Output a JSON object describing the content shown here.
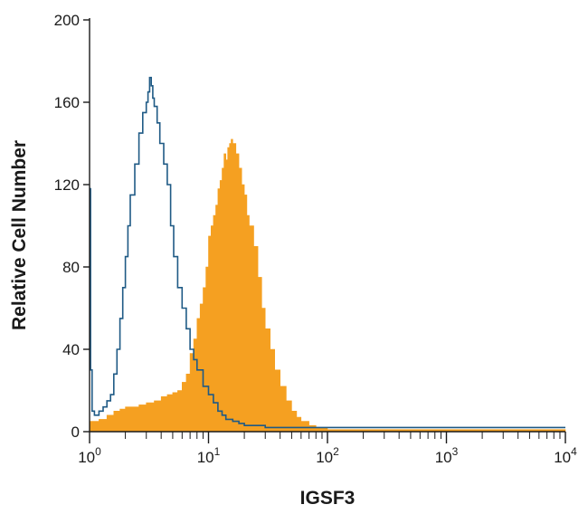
{
  "chart_data": {
    "type": "area",
    "xlabel": "IGSF3",
    "ylabel": "Relative Cell Number",
    "x_scale": "log",
    "xlim": [
      1,
      10000
    ],
    "ylim": [
      0,
      200
    ],
    "y_ticks": [
      0,
      40,
      80,
      120,
      160,
      200
    ],
    "x_major_ticks": [
      {
        "value": 1,
        "base": "10",
        "exp": "0"
      },
      {
        "value": 10,
        "base": "10",
        "exp": "1"
      },
      {
        "value": 100,
        "base": "10",
        "exp": "2"
      },
      {
        "value": 1000,
        "base": "10",
        "exp": "3"
      },
      {
        "value": 10000,
        "base": "10",
        "exp": "4"
      }
    ],
    "grid": false,
    "legend": "none",
    "series": [
      {
        "style": "filled",
        "color": "#f5a021",
        "x": [
          1.0,
          1.2,
          1.4,
          1.6,
          1.8,
          2.0,
          2.3,
          2.6,
          3.0,
          3.5,
          4.0,
          4.5,
          5.0,
          5.5,
          6.0,
          6.5,
          7.0,
          7.5,
          8.0,
          8.5,
          9.0,
          9.5,
          10.0,
          10.5,
          11.0,
          11.5,
          12.0,
          12.5,
          13.0,
          13.5,
          14.0,
          14.5,
          15.0,
          15.5,
          16.0,
          17.0,
          18.0,
          19.0,
          20.0,
          21.0,
          22.0,
          24.0,
          26.0,
          28.0,
          30.0,
          33.0,
          36.0,
          40.0,
          45.0,
          50.0,
          55.0,
          60.0,
          70.0,
          80.0,
          90.0,
          100.0,
          150.0,
          300.0,
          1000.0,
          3000.0,
          10000.0
        ],
        "y": [
          5,
          6,
          8,
          10,
          11,
          12,
          12,
          13,
          14,
          15,
          17,
          18,
          19,
          20,
          24,
          28,
          38,
          45,
          55,
          62,
          70,
          80,
          95,
          100,
          105,
          110,
          118,
          122,
          128,
          135,
          132,
          138,
          140,
          142,
          140,
          135,
          128,
          120,
          115,
          105,
          100,
          90,
          75,
          60,
          50,
          40,
          30,
          22,
          15,
          10,
          7,
          5,
          3,
          2,
          2,
          1,
          1,
          1,
          1,
          1,
          0
        ]
      },
      {
        "style": "outline",
        "color": "#1f5a85",
        "x": [
          1.0,
          1.02,
          1.05,
          1.1,
          1.15,
          1.2,
          1.3,
          1.4,
          1.5,
          1.6,
          1.7,
          1.8,
          1.9,
          2.0,
          2.1,
          2.2,
          2.4,
          2.6,
          2.8,
          3.0,
          3.1,
          3.2,
          3.3,
          3.4,
          3.5,
          3.7,
          3.9,
          4.2,
          4.5,
          4.8,
          5.1,
          5.5,
          6.0,
          6.5,
          7.0,
          7.5,
          8.0,
          9.0,
          10.0,
          11.0,
          12.0,
          13.0,
          14.0,
          16.0,
          18.0,
          20.0,
          25.0,
          30.0,
          40.0,
          60.0,
          100.0,
          300.0,
          1000.0,
          3500.0,
          10000.0
        ],
        "y": [
          118,
          30,
          10,
          8,
          8,
          10,
          12,
          15,
          18,
          28,
          40,
          55,
          70,
          85,
          100,
          115,
          130,
          145,
          155,
          160,
          165,
          172,
          168,
          162,
          158,
          150,
          140,
          130,
          120,
          100,
          85,
          70,
          60,
          50,
          40,
          35,
          30,
          22,
          18,
          14,
          10,
          8,
          6,
          5,
          4,
          3,
          3,
          2,
          2,
          2,
          2,
          2,
          2,
          2,
          2
        ]
      }
    ]
  }
}
